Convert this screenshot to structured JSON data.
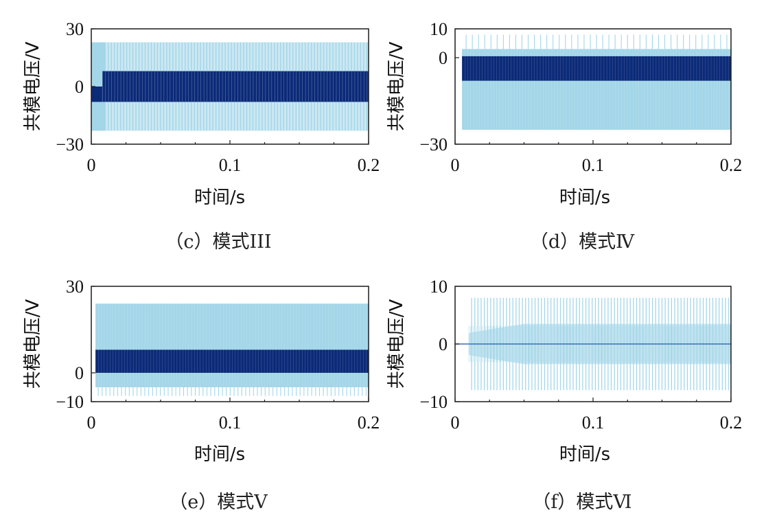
{
  "colors": {
    "light": "#a3d6e8",
    "dark": "#0b2a78",
    "axis": "#1a1a1a"
  },
  "chart_data": [
    {
      "id": "c",
      "type": "line",
      "caption": "（c）模式III",
      "xlabel": "时间/s",
      "ylabel": "共模电压/V",
      "xlim": [
        0,
        0.2
      ],
      "ylim": [
        -30,
        30
      ],
      "xticks": [
        "0",
        "0.1",
        "0.2"
      ],
      "yticks": [
        "30",
        "0",
        "−30"
      ],
      "ytick_values": [
        30,
        0,
        -30
      ],
      "series": [
        {
          "name": "light",
          "pattern": "square-wave",
          "t_start": 0.01,
          "high": 23,
          "low": -23,
          "spikes_low": -23
        },
        {
          "name": "dark",
          "pattern": "square-band",
          "t_start": 0.008,
          "high": 8,
          "low": -8,
          "initial_band": [
            -8,
            0
          ]
        }
      ]
    },
    {
      "id": "d",
      "type": "line",
      "caption": "（d）模式Ⅳ",
      "xlabel": "时间/s",
      "ylabel": "共模电压/V",
      "xlim": [
        0,
        0.2
      ],
      "ylim": [
        -30,
        10
      ],
      "xticks": [
        "0",
        "0.1",
        "0.2"
      ],
      "yticks": [
        "10",
        "0",
        "−30"
      ],
      "ytick_values": [
        10,
        0,
        -30
      ],
      "series": [
        {
          "name": "light",
          "pattern": "dense-band",
          "t_start": 0.005,
          "high": 3,
          "low": -25,
          "spike_high": 8
        },
        {
          "name": "dark",
          "pattern": "dense-band",
          "t_start": 0.005,
          "high": 0.5,
          "low": -8
        }
      ]
    },
    {
      "id": "e",
      "type": "line",
      "caption": "（e）模式Ⅴ",
      "xlabel": "时间/s",
      "ylabel": "共模电压/V",
      "xlim": [
        0,
        0.2
      ],
      "ylim": [
        -10,
        30
      ],
      "xticks": [
        "0",
        "0.1",
        "0.2"
      ],
      "yticks": [
        "30",
        "0",
        "−10"
      ],
      "ytick_values": [
        30,
        0,
        -10
      ],
      "series": [
        {
          "name": "light",
          "pattern": "dense-band",
          "t_start": 0.003,
          "high": 24,
          "low": -5,
          "spike_low": -8
        },
        {
          "name": "dark",
          "pattern": "dense-band",
          "t_start": 0.003,
          "high": 8,
          "low": 0
        }
      ]
    },
    {
      "id": "f",
      "type": "line",
      "caption": "（f）模式Ⅵ",
      "xlabel": "时间/s",
      "ylabel": "共模电压/V",
      "xlim": [
        0,
        0.2
      ],
      "ylim": [
        -10,
        10
      ],
      "xticks": [
        "0",
        "0.1",
        "0.2"
      ],
      "yticks": [
        "10",
        "0",
        "−10"
      ],
      "ytick_values": [
        10,
        0,
        -10
      ],
      "series": [
        {
          "name": "light",
          "pattern": "spike-train",
          "t_start": 0.01,
          "spike_high": 8,
          "spike_low": -8,
          "envelope": 3.5
        },
        {
          "name": "dark",
          "pattern": "flat",
          "value": 0
        }
      ]
    }
  ]
}
